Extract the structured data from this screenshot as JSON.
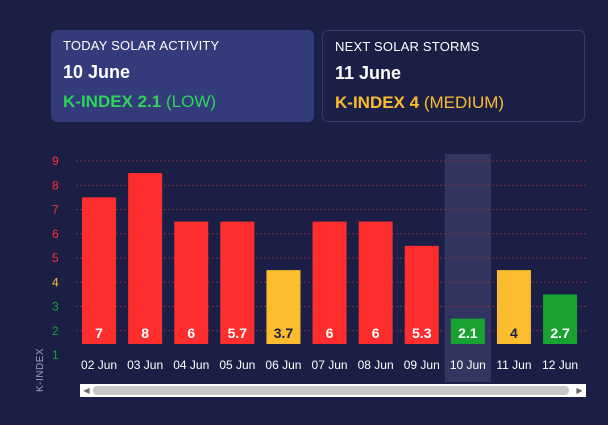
{
  "cards": {
    "today": {
      "label": "TODAY SOLAR ACTIVITY",
      "date": "10 June",
      "kindex_value": "K-INDEX 2.1",
      "kindex_level": "(LOW)"
    },
    "next": {
      "label": "NEXT SOLAR STORMS",
      "date": "11 June",
      "kindex_value": "K-INDEX 4",
      "kindex_level": "(MEDIUM)"
    }
  },
  "colors": {
    "high": "#ff2e2e",
    "medium": "#fbbd2f",
    "low": "#17a232",
    "background": "#1c1f45",
    "highlight": "#3a3e68"
  },
  "icons": {
    "scroll_left": "◀",
    "scroll_right": "▶"
  },
  "chart_data": {
    "type": "bar",
    "categories": [
      "02 Jun",
      "03 Jun",
      "04 Jun",
      "05 Jun",
      "06 Jun",
      "07 Jun",
      "08 Jun",
      "09 Jun",
      "10 Jun",
      "11 Jun",
      "12 Jun"
    ],
    "values": [
      7,
      8,
      6,
      5.7,
      3.7,
      6,
      6,
      5.3,
      2.1,
      4,
      2.7
    ],
    "display_values": [
      "7",
      "8",
      "6",
      "5.7",
      "3.7",
      "6",
      "6",
      "5.3",
      "2.1",
      "4",
      "2.7"
    ],
    "bar_colors": [
      "high",
      "high",
      "high",
      "high",
      "medium",
      "high",
      "high",
      "high",
      "low",
      "medium",
      "low"
    ],
    "bar_heights_values": [
      7.5,
      8.5,
      6.5,
      6.5,
      4.5,
      6.5,
      6.5,
      5.5,
      2.5,
      4.5,
      3.5
    ],
    "highlighted_category": "10 Jun",
    "ylabel": "K-INDEX",
    "yticks": [
      1,
      2,
      3,
      4,
      5,
      6,
      7,
      8,
      9
    ],
    "ytick_colors": [
      "low",
      "low",
      "low",
      "medium",
      "high",
      "high",
      "high",
      "high",
      "high"
    ],
    "ylim": [
      1,
      9.8
    ],
    "grid": true
  }
}
